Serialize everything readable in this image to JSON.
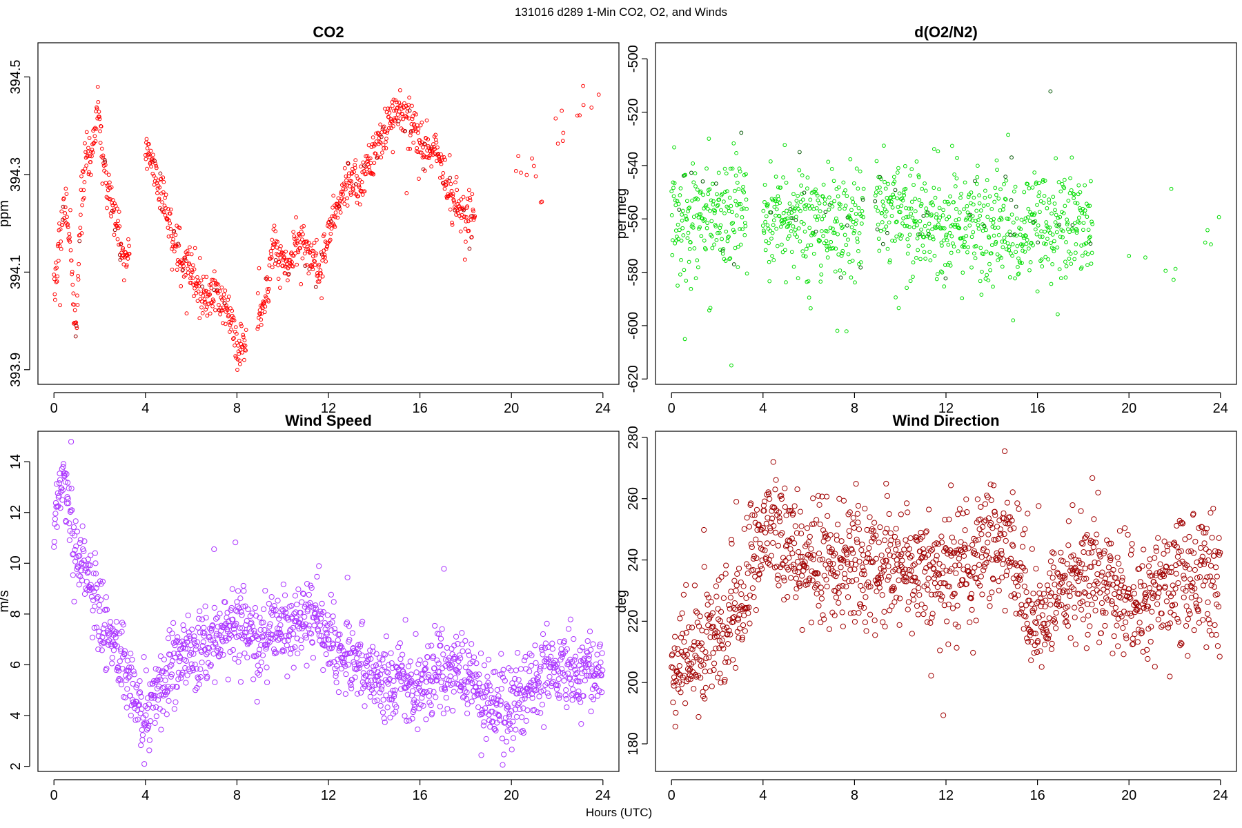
{
  "figure": {
    "main_title": "131016   d289   1-Min CO2, O2, and Winds",
    "shared_xlabel": "Hours (UTC)"
  },
  "chart_data": [
    {
      "id": "co2",
      "type": "scatter",
      "title": "CO2",
      "xlabel": "",
      "ylabel": "ppm",
      "xlim": [
        -0.7,
        24.7
      ],
      "ylim": [
        393.87,
        394.57
      ],
      "xticks": [
        0,
        4,
        8,
        12,
        16,
        20,
        24
      ],
      "yticks": [
        393.9,
        394.1,
        394.3,
        394.5
      ],
      "color": "#ff0000",
      "dark_color": "#990000",
      "marker_radius": 2.4,
      "anchors": [
        [
          0.1,
          394.09
        ],
        [
          0.3,
          394.18
        ],
        [
          0.5,
          394.24
        ],
        [
          0.7,
          394.16
        ],
        [
          0.8,
          394.1
        ],
        [
          0.9,
          394.0
        ],
        [
          1.0,
          393.99
        ],
        [
          1.1,
          394.14
        ],
        [
          1.2,
          394.25
        ],
        [
          1.4,
          394.33
        ],
        [
          1.6,
          394.33
        ],
        [
          1.8,
          394.38
        ],
        [
          1.9,
          394.45
        ],
        [
          2.1,
          394.35
        ],
        [
          2.3,
          394.28
        ],
        [
          2.5,
          394.24
        ],
        [
          2.7,
          394.2
        ],
        [
          2.9,
          394.17
        ],
        [
          3.1,
          394.12
        ],
        [
          4.1,
          394.36
        ],
        [
          4.4,
          394.3
        ],
        [
          4.7,
          394.26
        ],
        [
          5.0,
          394.21
        ],
        [
          5.3,
          394.16
        ],
        [
          5.6,
          394.13
        ],
        [
          5.9,
          394.11
        ],
        [
          6.2,
          394.08
        ],
        [
          6.5,
          394.06
        ],
        [
          6.8,
          394.04
        ],
        [
          7.1,
          394.06
        ],
        [
          7.4,
          394.03
        ],
        [
          7.7,
          394.02
        ],
        [
          7.9,
          393.97
        ],
        [
          8.2,
          393.93
        ],
        [
          9.1,
          394.02
        ],
        [
          9.4,
          394.09
        ],
        [
          9.6,
          394.16
        ],
        [
          10.0,
          394.12
        ],
        [
          10.3,
          394.11
        ],
        [
          10.6,
          394.15
        ],
        [
          10.9,
          394.17
        ],
        [
          11.3,
          394.12
        ],
        [
          11.6,
          394.1
        ],
        [
          11.9,
          394.16
        ],
        [
          12.2,
          394.21
        ],
        [
          12.6,
          394.26
        ],
        [
          13.0,
          394.3
        ],
        [
          13.3,
          394.27
        ],
        [
          13.8,
          394.33
        ],
        [
          14.2,
          394.36
        ],
        [
          14.6,
          394.41
        ],
        [
          15.0,
          394.42
        ],
        [
          15.4,
          394.43
        ],
        [
          15.8,
          394.39
        ],
        [
          16.2,
          394.35
        ],
        [
          16.6,
          394.36
        ],
        [
          17.0,
          394.31
        ],
        [
          17.4,
          394.25
        ],
        [
          17.8,
          394.22
        ],
        [
          18.2,
          394.21
        ],
        [
          20.3,
          394.34
        ],
        [
          20.6,
          394.28
        ],
        [
          20.9,
          394.33
        ],
        [
          21.4,
          394.2
        ],
        [
          21.9,
          394.37
        ],
        [
          22.3,
          394.4
        ],
        [
          23.1,
          394.45
        ],
        [
          23.6,
          394.44
        ],
        [
          23.9,
          394.48
        ]
      ],
      "gaps": [
        [
          3.3,
          4.0
        ],
        [
          8.4,
          8.9
        ],
        [
          18.4,
          20.2
        ]
      ],
      "noise": 0.022,
      "sparse_after": 20.2
    },
    {
      "id": "o2",
      "type": "scatter",
      "title": "d(O2/N2)",
      "xlabel": "",
      "ylabel": "per meg",
      "xlim": [
        -0.7,
        24.7
      ],
      "ylim": [
        -622,
        -494
      ],
      "xticks": [
        0,
        4,
        8,
        12,
        16,
        20,
        24
      ],
      "yticks": [
        -620,
        -600,
        -580,
        -560,
        -540,
        -520,
        -500
      ],
      "color": "#00dd00",
      "dark_color": "#005500",
      "marker_radius": 2.4,
      "anchors": [
        [
          0.0,
          -560
        ],
        [
          3.3,
          -559
        ],
        [
          4.2,
          -560
        ],
        [
          8.4,
          -563
        ],
        [
          8.9,
          -559
        ],
        [
          12.0,
          -563
        ],
        [
          14.0,
          -565
        ],
        [
          16.0,
          -562
        ],
        [
          18.2,
          -561
        ],
        [
          20.0,
          -563
        ],
        [
          20.7,
          -563
        ],
        [
          21.8,
          -563
        ],
        [
          23.4,
          -565
        ],
        [
          24.0,
          -565
        ]
      ],
      "gaps": [
        [
          3.3,
          4.0
        ],
        [
          8.4,
          8.9
        ],
        [
          18.4,
          20.0
        ]
      ],
      "noise": 10.5,
      "sparse_after": 20.0
    },
    {
      "id": "wind-speed",
      "type": "scatter",
      "title": "Wind Speed",
      "xlabel": "",
      "ylabel": "m/s",
      "xlim": [
        -0.7,
        24.7
      ],
      "ylim": [
        1.8,
        15.2
      ],
      "xticks": [
        0,
        4,
        8,
        12,
        16,
        20,
        24
      ],
      "yticks": [
        2,
        4,
        6,
        8,
        10,
        12,
        14
      ],
      "color": "#aa33ff",
      "dark_color": "#aa33ff",
      "marker_radius": 3.6,
      "anchors": [
        [
          0.0,
          11.5
        ],
        [
          0.2,
          12.8
        ],
        [
          0.4,
          13.8
        ],
        [
          0.6,
          12.7
        ],
        [
          0.8,
          11.0
        ],
        [
          1.0,
          10.3
        ],
        [
          1.3,
          9.7
        ],
        [
          1.6,
          9.3
        ],
        [
          2.0,
          8.2
        ],
        [
          2.3,
          7.3
        ],
        [
          2.6,
          6.7
        ],
        [
          3.0,
          6.2
        ],
        [
          3.3,
          5.3
        ],
        [
          3.6,
          4.4
        ],
        [
          3.9,
          4.0
        ],
        [
          4.2,
          4.4
        ],
        [
          4.5,
          5.0
        ],
        [
          5.0,
          5.8
        ],
        [
          5.5,
          6.2
        ],
        [
          6.0,
          6.5
        ],
        [
          6.5,
          6.6
        ],
        [
          7.0,
          6.9
        ],
        [
          7.5,
          7.3
        ],
        [
          8.0,
          7.6
        ],
        [
          8.5,
          7.2
        ],
        [
          9.0,
          6.8
        ],
        [
          9.5,
          7.1
        ],
        [
          10.0,
          7.3
        ],
        [
          10.5,
          7.3
        ],
        [
          11.0,
          7.6
        ],
        [
          11.5,
          7.9
        ],
        [
          12.0,
          7.2
        ],
        [
          12.5,
          6.7
        ],
        [
          13.0,
          6.2
        ],
        [
          13.5,
          5.9
        ],
        [
          14.0,
          5.6
        ],
        [
          14.5,
          5.3
        ],
        [
          15.0,
          5.5
        ],
        [
          15.5,
          5.2
        ],
        [
          16.0,
          5.1
        ],
        [
          16.5,
          5.2
        ],
        [
          17.0,
          5.8
        ],
        [
          17.5,
          5.8
        ],
        [
          18.0,
          5.5
        ],
        [
          18.5,
          5.0
        ],
        [
          19.0,
          4.6
        ],
        [
          19.5,
          4.2
        ],
        [
          20.0,
          4.4
        ],
        [
          20.5,
          4.8
        ],
        [
          21.0,
          5.3
        ],
        [
          21.5,
          5.9
        ],
        [
          22.0,
          6.0
        ],
        [
          22.5,
          5.8
        ],
        [
          23.0,
          5.7
        ],
        [
          23.5,
          5.9
        ],
        [
          24.0,
          5.5
        ]
      ],
      "gaps": [],
      "noise": 0.75,
      "sparse_after": 99
    },
    {
      "id": "wind-direction",
      "type": "scatter",
      "title": "Wind Direction",
      "xlabel": "",
      "ylabel": "deg",
      "xlim": [
        -0.7,
        24.7
      ],
      "ylim": [
        171,
        282
      ],
      "xticks": [
        0,
        4,
        8,
        12,
        16,
        20,
        24
      ],
      "yticks": [
        180,
        200,
        220,
        240,
        260,
        280
      ],
      "color": "#a00000",
      "dark_color": "#a00000",
      "marker_radius": 3.6,
      "anchors": [
        [
          0.0,
          200
        ],
        [
          0.5,
          204
        ],
        [
          1.0,
          209
        ],
        [
          1.5,
          214
        ],
        [
          2.0,
          218
        ],
        [
          2.5,
          220
        ],
        [
          3.0,
          226
        ],
        [
          3.5,
          236
        ],
        [
          4.0,
          250
        ],
        [
          4.5,
          252
        ],
        [
          5.0,
          245
        ],
        [
          5.5,
          241
        ],
        [
          6.0,
          240
        ],
        [
          6.5,
          242
        ],
        [
          7.0,
          240
        ],
        [
          7.5,
          237
        ],
        [
          8.0,
          236
        ],
        [
          8.5,
          238
        ],
        [
          9.0,
          237
        ],
        [
          9.5,
          239
        ],
        [
          10.0,
          238
        ],
        [
          10.5,
          237
        ],
        [
          11.0,
          235
        ],
        [
          11.5,
          236
        ],
        [
          12.0,
          237
        ],
        [
          12.5,
          238
        ],
        [
          13.0,
          238
        ],
        [
          13.5,
          240
        ],
        [
          14.0,
          247
        ],
        [
          14.5,
          245
        ],
        [
          15.0,
          240
        ],
        [
          15.5,
          226
        ],
        [
          16.0,
          218
        ],
        [
          16.5,
          224
        ],
        [
          17.0,
          232
        ],
        [
          17.5,
          236
        ],
        [
          18.0,
          238
        ],
        [
          18.5,
          234
        ],
        [
          19.0,
          230
        ],
        [
          19.5,
          228
        ],
        [
          20.0,
          226
        ],
        [
          20.5,
          228
        ],
        [
          21.0,
          230
        ],
        [
          21.5,
          232
        ],
        [
          22.0,
          234
        ],
        [
          22.5,
          235
        ],
        [
          23.0,
          236
        ],
        [
          23.5,
          236
        ],
        [
          24.0,
          233
        ]
      ],
      "gaps": [],
      "noise": 9.5,
      "sparse_after": 99
    }
  ]
}
